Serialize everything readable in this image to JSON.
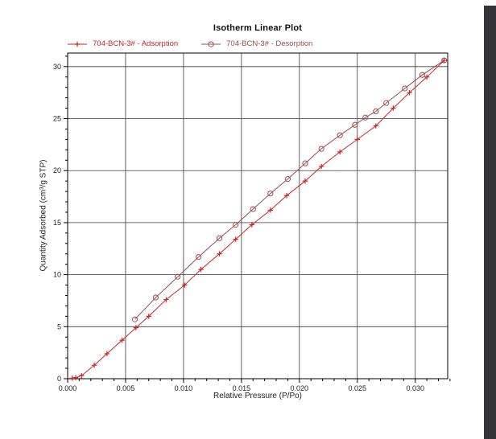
{
  "window": {
    "background_color": "#ffffff",
    "right_edge_color": "#333338"
  },
  "chart_data": {
    "type": "line",
    "title": "Isotherm Linear Plot",
    "xlabel": "Relative Pressure (P/Po)",
    "ylabel": "Quantity Adsorbed (cm³/g STP)",
    "xlim": [
      0,
      0.0328
    ],
    "ylim": [
      0,
      31.3
    ],
    "grid": true,
    "legend_position": "top",
    "x_major_ticks": [
      0,
      0.005,
      0.01,
      0.015,
      0.02,
      0.025,
      0.03
    ],
    "x_tick_labels": [
      "0.000",
      "0.005",
      "0.010",
      "0.015",
      "0.020",
      "0.025",
      "0.030"
    ],
    "x_minor_step": 0.001,
    "y_major_ticks": [
      0,
      5,
      10,
      15,
      20,
      25,
      30
    ],
    "y_tick_labels": [
      "0",
      "5",
      "10",
      "15",
      "20",
      "25",
      "30"
    ],
    "y_minor_step": 1,
    "axis_color": "#000000",
    "grid_color": "#3a3a3a",
    "series": [
      {
        "name": "704-BCN-3# - Adsorption",
        "marker": "plus",
        "color": "#cc2626",
        "points": [
          [
            0.0004,
            0.05
          ],
          [
            0.0007,
            0.1
          ],
          [
            0.0012,
            0.3
          ],
          [
            0.0023,
            1.3
          ],
          [
            0.0034,
            2.4
          ],
          [
            0.0047,
            3.7
          ],
          [
            0.0059,
            4.9
          ],
          [
            0.007,
            6.0
          ],
          [
            0.0085,
            7.6
          ],
          [
            0.0101,
            9.0
          ],
          [
            0.0115,
            10.5
          ],
          [
            0.0131,
            12.0
          ],
          [
            0.0145,
            13.4
          ],
          [
            0.0159,
            14.8
          ],
          [
            0.0175,
            16.2
          ],
          [
            0.0189,
            17.6
          ],
          [
            0.0205,
            19.0
          ],
          [
            0.0219,
            20.4
          ],
          [
            0.0235,
            21.8
          ],
          [
            0.025,
            23.0
          ],
          [
            0.0266,
            24.3
          ],
          [
            0.0281,
            26.0
          ],
          [
            0.0295,
            27.5
          ],
          [
            0.031,
            29.0
          ],
          [
            0.0325,
            30.6
          ]
        ]
      },
      {
        "name": "704-BCN-3# - Desorption",
        "marker": "circle",
        "color": "#9a4f4f",
        "points": [
          [
            0.0058,
            5.7
          ],
          [
            0.0076,
            7.8
          ],
          [
            0.0095,
            9.8
          ],
          [
            0.0113,
            11.7
          ],
          [
            0.0131,
            13.5
          ],
          [
            0.0145,
            14.8
          ],
          [
            0.016,
            16.3
          ],
          [
            0.0175,
            17.8
          ],
          [
            0.019,
            19.2
          ],
          [
            0.0205,
            20.7
          ],
          [
            0.0219,
            22.1
          ],
          [
            0.0235,
            23.4
          ],
          [
            0.0248,
            24.4
          ],
          [
            0.0257,
            25.1
          ],
          [
            0.0266,
            25.7
          ],
          [
            0.0275,
            26.5
          ],
          [
            0.0291,
            27.9
          ],
          [
            0.0306,
            29.2
          ],
          [
            0.0325,
            30.6
          ]
        ]
      }
    ]
  }
}
